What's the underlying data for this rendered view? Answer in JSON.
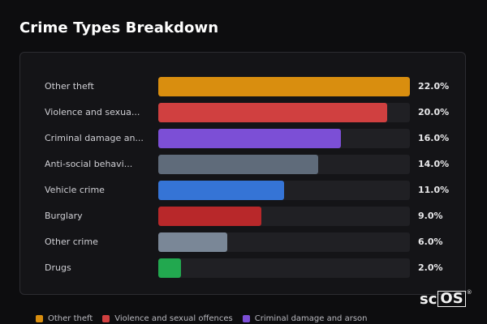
{
  "title": "Crime Types Breakdown",
  "chart_data": {
    "type": "bar",
    "orientation": "horizontal",
    "title": "Crime Types Breakdown",
    "categories": [
      "Other theft",
      "Violence and sexua...",
      "Criminal damage an...",
      "Anti-social behavi...",
      "Vehicle crime",
      "Burglary",
      "Other crime",
      "Drugs"
    ],
    "values": [
      22.0,
      20.0,
      16.0,
      14.0,
      11.0,
      9.0,
      6.0,
      2.0
    ],
    "value_labels": [
      "22.0%",
      "20.0%",
      "16.0%",
      "14.0%",
      "11.0%",
      "9.0%",
      "6.0%",
      "2.0%"
    ],
    "colors": [
      "#d98e0f",
      "#d04040",
      "#7c4fd6",
      "#5f6b7a",
      "#3574d6",
      "#b8282a",
      "#7a8797",
      "#22a84f"
    ],
    "xlim": [
      0,
      22
    ],
    "grid": false,
    "legend_position": "bottom"
  },
  "legend": [
    {
      "label": "Other theft",
      "color": "#d98e0f"
    },
    {
      "label": "Violence and sexual offences",
      "color": "#d04040"
    },
    {
      "label": "Criminal damage and arson",
      "color": "#7c4fd6"
    }
  ],
  "logo": {
    "text_a": "sc",
    "text_b": "OS",
    "mark": "®"
  }
}
